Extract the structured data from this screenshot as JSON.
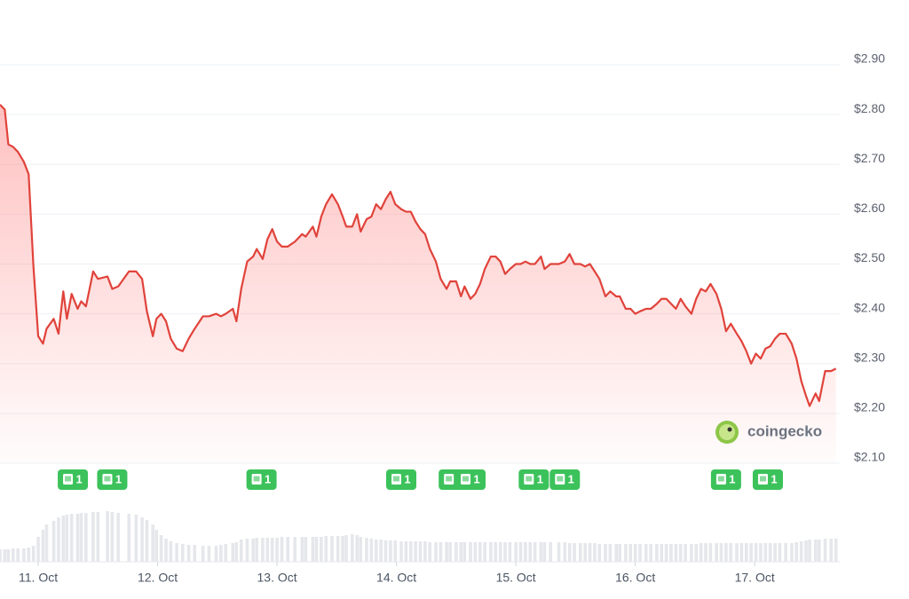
{
  "chart_data": {
    "type": "area",
    "color": "#e0433b",
    "fill_color": "#ff6b6b",
    "grid": true,
    "watermark": "coingecko",
    "xlim": [
      10.68,
      17.69
    ],
    "xticks": [
      {
        "value": 11,
        "label": "11. Oct"
      },
      {
        "value": 12,
        "label": "12. Oct"
      },
      {
        "value": 13,
        "label": "13. Oct"
      },
      {
        "value": 14,
        "label": "14. Oct"
      },
      {
        "value": 15,
        "label": "15. Oct"
      },
      {
        "value": 16,
        "label": "16. Oct"
      },
      {
        "value": 17,
        "label": "17. Oct"
      }
    ],
    "ylim": [
      2.1,
      3.03
    ],
    "yticks": [
      {
        "value": 2.9,
        "label": "$2.90"
      },
      {
        "value": 2.8,
        "label": "$2.80"
      },
      {
        "value": 2.7,
        "label": "$2.70"
      },
      {
        "value": 2.6,
        "label": "$2.60"
      },
      {
        "value": 2.5,
        "label": "$2.50"
      },
      {
        "value": 2.4,
        "label": "$2.40"
      },
      {
        "value": 2.3,
        "label": "$2.30"
      },
      {
        "value": 2.2,
        "label": "$2.20"
      },
      {
        "value": 2.1,
        "label": "$2.10"
      }
    ],
    "x": [
      10.68,
      10.72,
      10.75,
      10.79,
      10.83,
      10.88,
      10.92,
      10.96,
      11.0,
      11.04,
      11.07,
      11.13,
      11.17,
      11.21,
      11.24,
      11.28,
      11.33,
      11.36,
      11.4,
      11.46,
      11.5,
      11.58,
      11.62,
      11.67,
      11.76,
      11.82,
      11.87,
      11.91,
      11.96,
      11.99,
      12.03,
      12.07,
      12.11,
      12.16,
      12.21,
      12.26,
      12.31,
      12.38,
      12.43,
      12.49,
      12.53,
      12.57,
      12.63,
      12.66,
      12.7,
      12.75,
      12.8,
      12.83,
      12.88,
      12.92,
      12.96,
      13.0,
      13.04,
      13.09,
      13.15,
      13.21,
      13.24,
      13.3,
      13.33,
      13.37,
      13.41,
      13.46,
      13.51,
      13.55,
      13.58,
      13.63,
      13.67,
      13.7,
      13.75,
      13.79,
      13.83,
      13.87,
      13.91,
      13.95,
      13.99,
      14.04,
      14.08,
      14.12,
      14.16,
      14.2,
      14.24,
      14.28,
      14.33,
      14.37,
      14.42,
      14.45,
      14.5,
      14.54,
      14.57,
      14.62,
      14.66,
      14.7,
      14.74,
      14.79,
      14.83,
      14.87,
      14.91,
      14.95,
      15.0,
      15.04,
      15.08,
      15.12,
      15.16,
      15.21,
      15.24,
      15.29,
      15.36,
      15.41,
      15.45,
      15.49,
      15.54,
      15.58,
      15.62,
      15.66,
      15.7,
      15.75,
      15.79,
      15.84,
      15.87,
      15.92,
      15.96,
      16.0,
      16.04,
      16.09,
      16.13,
      16.18,
      16.22,
      16.26,
      16.3,
      16.34,
      16.38,
      16.42,
      16.47,
      16.51,
      16.55,
      16.59,
      16.63,
      16.68,
      16.72,
      16.76,
      16.8,
      16.85,
      16.89,
      16.93,
      16.97,
      17.01,
      17.05,
      17.09,
      17.13,
      17.17,
      17.21,
      17.26,
      17.31,
      17.35,
      17.39,
      17.43,
      17.46,
      17.51,
      17.54,
      17.59,
      17.64,
      17.68
    ],
    "values": [
      2.82,
      2.81,
      2.74,
      2.735,
      2.725,
      2.705,
      2.68,
      2.495,
      2.355,
      2.34,
      2.37,
      2.39,
      2.36,
      2.445,
      2.39,
      2.44,
      2.41,
      2.425,
      2.415,
      2.485,
      2.47,
      2.475,
      2.45,
      2.455,
      2.485,
      2.485,
      2.47,
      2.405,
      2.355,
      2.39,
      2.4,
      2.385,
      2.35,
      2.33,
      2.325,
      2.35,
      2.37,
      2.395,
      2.395,
      2.4,
      2.395,
      2.4,
      2.41,
      2.385,
      2.45,
      2.505,
      2.515,
      2.53,
      2.51,
      2.55,
      2.57,
      2.545,
      2.535,
      2.535,
      2.545,
      2.56,
      2.555,
      2.575,
      2.555,
      2.595,
      2.62,
      2.64,
      2.62,
      2.595,
      2.575,
      2.575,
      2.6,
      2.565,
      2.59,
      2.595,
      2.62,
      2.61,
      2.63,
      2.645,
      2.62,
      2.61,
      2.605,
      2.605,
      2.585,
      2.57,
      2.56,
      2.53,
      2.505,
      2.47,
      2.45,
      2.465,
      2.465,
      2.435,
      2.455,
      2.43,
      2.44,
      2.46,
      2.49,
      2.515,
      2.515,
      2.505,
      2.48,
      2.49,
      2.5,
      2.5,
      2.505,
      2.5,
      2.5,
      2.515,
      2.49,
      2.5,
      2.5,
      2.505,
      2.52,
      2.5,
      2.5,
      2.495,
      2.5,
      2.485,
      2.47,
      2.435,
      2.445,
      2.435,
      2.435,
      2.41,
      2.41,
      2.4,
      2.405,
      2.41,
      2.41,
      2.42,
      2.43,
      2.43,
      2.42,
      2.41,
      2.43,
      2.415,
      2.4,
      2.43,
      2.45,
      2.445,
      2.46,
      2.44,
      2.41,
      2.365,
      2.38,
      2.36,
      2.345,
      2.325,
      2.3,
      2.32,
      2.31,
      2.33,
      2.335,
      2.35,
      2.36,
      2.36,
      2.34,
      2.31,
      2.265,
      2.235,
      2.215,
      2.24,
      2.225,
      2.285,
      2.285,
      2.29
    ],
    "volume": {
      "color": "#e5e7eb",
      "ylim": [
        0,
        60
      ],
      "values": [
        14,
        14,
        14,
        15,
        15,
        15,
        16,
        18,
        28,
        36,
        42,
        46,
        50,
        52,
        53,
        54,
        54,
        55,
        55,
        56,
        56,
        57,
        56,
        55,
        54,
        53,
        50,
        47,
        42,
        36,
        30,
        26,
        23,
        21,
        20,
        19,
        19,
        18,
        18,
        18,
        19,
        20,
        21,
        22,
        25,
        26,
        26,
        27,
        27,
        27,
        27,
        27,
        28,
        28,
        28,
        28,
        28,
        28,
        28,
        28,
        29,
        29,
        29,
        29,
        30,
        31,
        30,
        28,
        27,
        26,
        25,
        25,
        24,
        24,
        24,
        23,
        23,
        23,
        23,
        23,
        23,
        22,
        22,
        22,
        22,
        22,
        22,
        22,
        22,
        22,
        22,
        22,
        22,
        22,
        22,
        22,
        22,
        22,
        22,
        22,
        22,
        22,
        22,
        22,
        22,
        22,
        22,
        22,
        21,
        21,
        21,
        21,
        21,
        21,
        20,
        20,
        20,
        20,
        20,
        20,
        20,
        20,
        20,
        20,
        20,
        20,
        20,
        20,
        20,
        20,
        20,
        20,
        20,
        20,
        21,
        21,
        21,
        21,
        21,
        21,
        21,
        21,
        21,
        21,
        21,
        21,
        21,
        21,
        21,
        21,
        21,
        21,
        21,
        22,
        23,
        24,
        25,
        25,
        25,
        26,
        26,
        26
      ]
    },
    "news_markers": {
      "color": "#3cc25b",
      "x": [
        11.29,
        11.62,
        12.87,
        14.04,
        14.48,
        14.62,
        15.15,
        15.41,
        16.76,
        17.11
      ],
      "labels": [
        "1",
        "1",
        "1",
        "1",
        "1",
        "1",
        "1",
        "1",
        "1",
        "1"
      ]
    }
  }
}
